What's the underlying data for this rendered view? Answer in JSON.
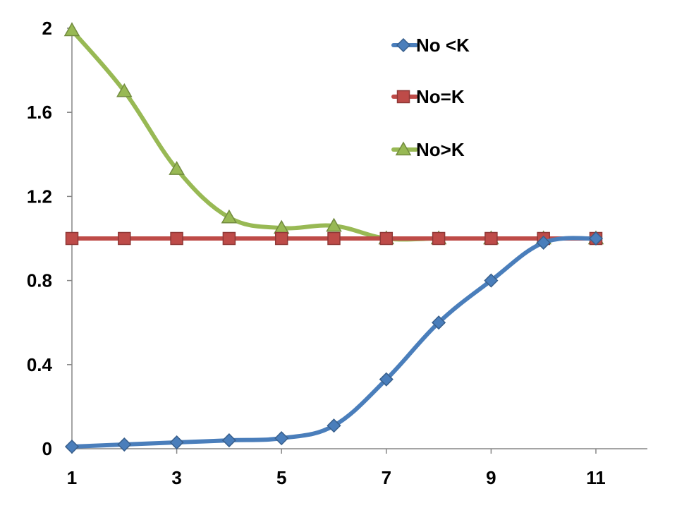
{
  "chart_data": {
    "type": "line",
    "title": "",
    "xlabel": "",
    "ylabel": "",
    "x": [
      1,
      2,
      3,
      4,
      5,
      6,
      7,
      8,
      9,
      10,
      11
    ],
    "x_ticks": [
      1,
      3,
      5,
      7,
      9,
      11
    ],
    "x_tick_labels": [
      "1",
      "3",
      "5",
      "7",
      "9",
      "11"
    ],
    "xlim": [
      1,
      11
    ],
    "y_ticks": [
      0,
      0.4,
      0.8,
      1.2,
      1.6,
      2
    ],
    "y_tick_labels": [
      "0",
      "0.4",
      "0.8",
      "1.2",
      "1.6",
      "2"
    ],
    "ylim": [
      0,
      2
    ],
    "grid": false,
    "smoothed": true,
    "legend_position": "top-right",
    "series": [
      {
        "name": "No <K",
        "color": "#4A7EBB",
        "marker": "diamond",
        "values": [
          0.01,
          0.02,
          0.03,
          0.04,
          0.05,
          0.11,
          0.33,
          0.6,
          0.8,
          0.98,
          1.0
        ]
      },
      {
        "name": "No=K",
        "color": "#BE4B48",
        "marker": "square",
        "values": [
          1.0,
          1.0,
          1.0,
          1.0,
          1.0,
          1.0,
          1.0,
          1.0,
          1.0,
          1.0,
          1.0
        ]
      },
      {
        "name": "No>K",
        "color": "#98B954",
        "marker": "triangle",
        "values": [
          1.99,
          1.7,
          1.33,
          1.1,
          1.05,
          1.06,
          1.0,
          1.0,
          1.0,
          1.0,
          1.0
        ]
      }
    ]
  }
}
